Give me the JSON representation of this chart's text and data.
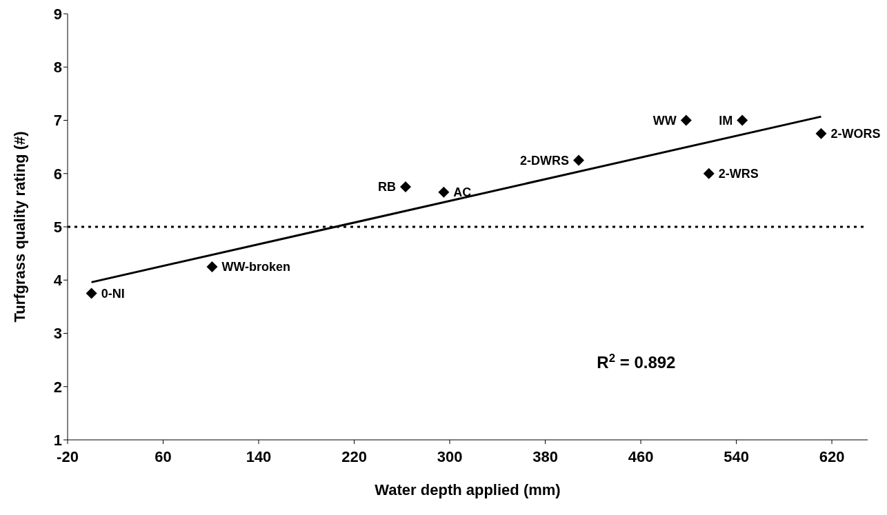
{
  "chart_data": {
    "type": "scatter",
    "xlabel": "Water depth applied (mm)",
    "ylabel": "Turfgrass quality rating (#)",
    "xlim": [
      -20,
      650
    ],
    "xticks": [
      -20,
      60,
      140,
      220,
      300,
      380,
      460,
      540,
      620
    ],
    "ylim": [
      1,
      9
    ],
    "yticks": [
      1,
      2,
      3,
      4,
      5,
      6,
      7,
      8,
      9
    ],
    "grid": false,
    "legend": false,
    "marker": "diamond",
    "series": [
      {
        "color": "#000000",
        "x": [
          0,
          101,
          263,
          295,
          408,
          498,
          545,
          517,
          611
        ],
        "values": [
          3.75,
          4.25,
          5.75,
          5.65,
          6.25,
          7,
          7,
          6,
          6.75
        ]
      },
      {
        "type": "line",
        "marker": "none",
        "color": "#000000",
        "x": [
          0,
          611
        ],
        "values": [
          3.96,
          7.07
        ]
      }
    ],
    "ref_lines": [
      {
        "axis": "y",
        "value": 5,
        "color": "#000000",
        "line_style": "dotted"
      }
    ],
    "annotations": [
      {
        "text": "0-NI",
        "x": 0,
        "y": 3.75
      },
      {
        "text": "WW-broken",
        "x": 101,
        "y": 4.25
      },
      {
        "text": "RB",
        "x": 263,
        "y": 5.75
      },
      {
        "text": "AC",
        "x": 295,
        "y": 5.65
      },
      {
        "text": "2-DWRS",
        "x": 408,
        "y": 6.25
      },
      {
        "text": "WW",
        "x": 498,
        "y": 7
      },
      {
        "text": "IM",
        "x": 545,
        "y": 7
      },
      {
        "text": "2-WRS",
        "x": 517,
        "y": 6
      },
      {
        "text": "2-WORS",
        "x": 611,
        "y": 6.75
      },
      "R$^{2}$ = 0.892"
    ]
  }
}
